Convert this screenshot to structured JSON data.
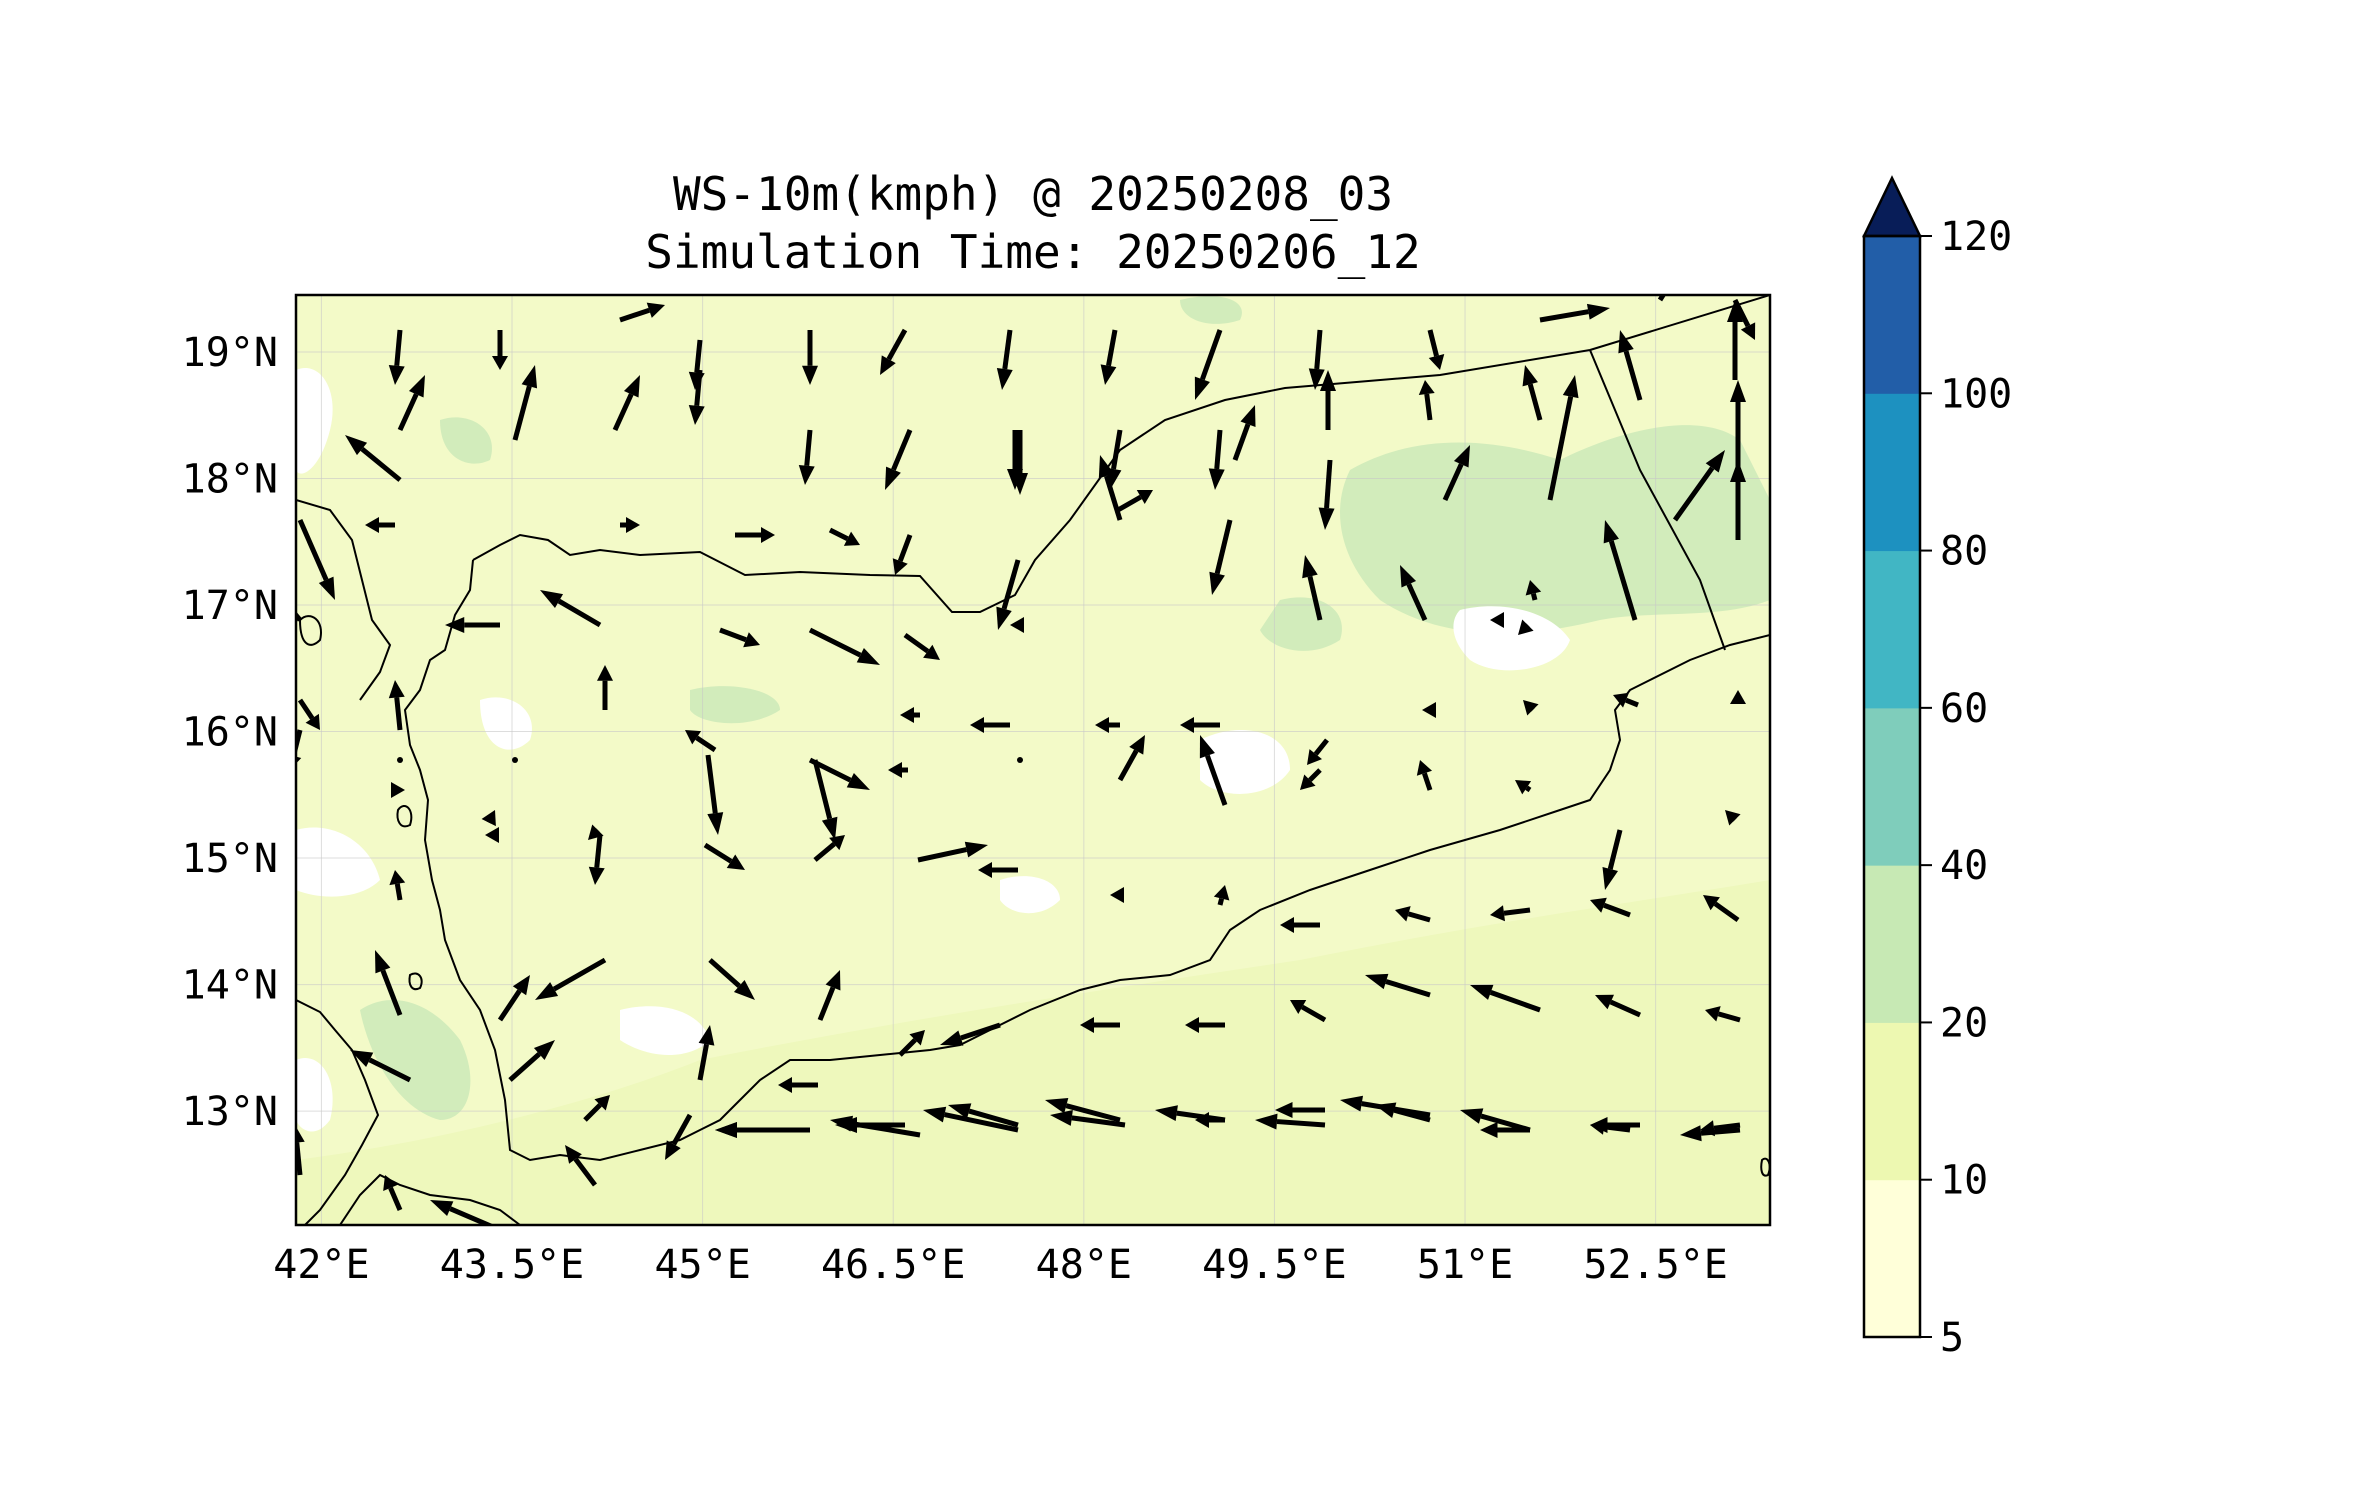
{
  "title": {
    "line1": "WS-10m(kmph) @ 20250208_03",
    "line2": "Simulation Time: 20250206_12"
  },
  "map": {
    "lon_range": [
      41.8,
      53.4
    ],
    "lat_range": [
      12.1,
      19.45
    ],
    "lon_ticks": [
      42,
      43.5,
      45,
      46.5,
      48,
      49.5,
      51,
      52.5
    ],
    "lon_tick_labels": [
      "42°E",
      "43.5°E",
      "45°E",
      "46.5°E",
      "48°E",
      "49.5°E",
      "51°E",
      "52.5°E"
    ],
    "lat_ticks": [
      13,
      14,
      15,
      16,
      17,
      18,
      19
    ],
    "lat_tick_labels": [
      "13°N",
      "14°N",
      "15°N",
      "16°N",
      "17°N",
      "18°N",
      "19°N"
    ],
    "gridlines": true,
    "field_colors": {
      "low": "#f5fbcc",
      "mid": "#eef8bd",
      "high": "#d4edbc",
      "calm": "#ffffff",
      "border": "#000000"
    }
  },
  "colorbar": {
    "levels": [
      5,
      10,
      20,
      40,
      60,
      80,
      100,
      120
    ],
    "labels": [
      "5",
      "10",
      "20",
      "40",
      "60",
      "80",
      "100",
      "120"
    ],
    "colors": [
      "#ffffd9",
      "#edf8b1",
      "#c7e9b4",
      "#7fcdbb",
      "#41b6c4",
      "#1d91c0",
      "#225ea8",
      "#0c2c84"
    ],
    "extend": "max",
    "extend_color": "#081d58",
    "unit": "kmph"
  }
}
